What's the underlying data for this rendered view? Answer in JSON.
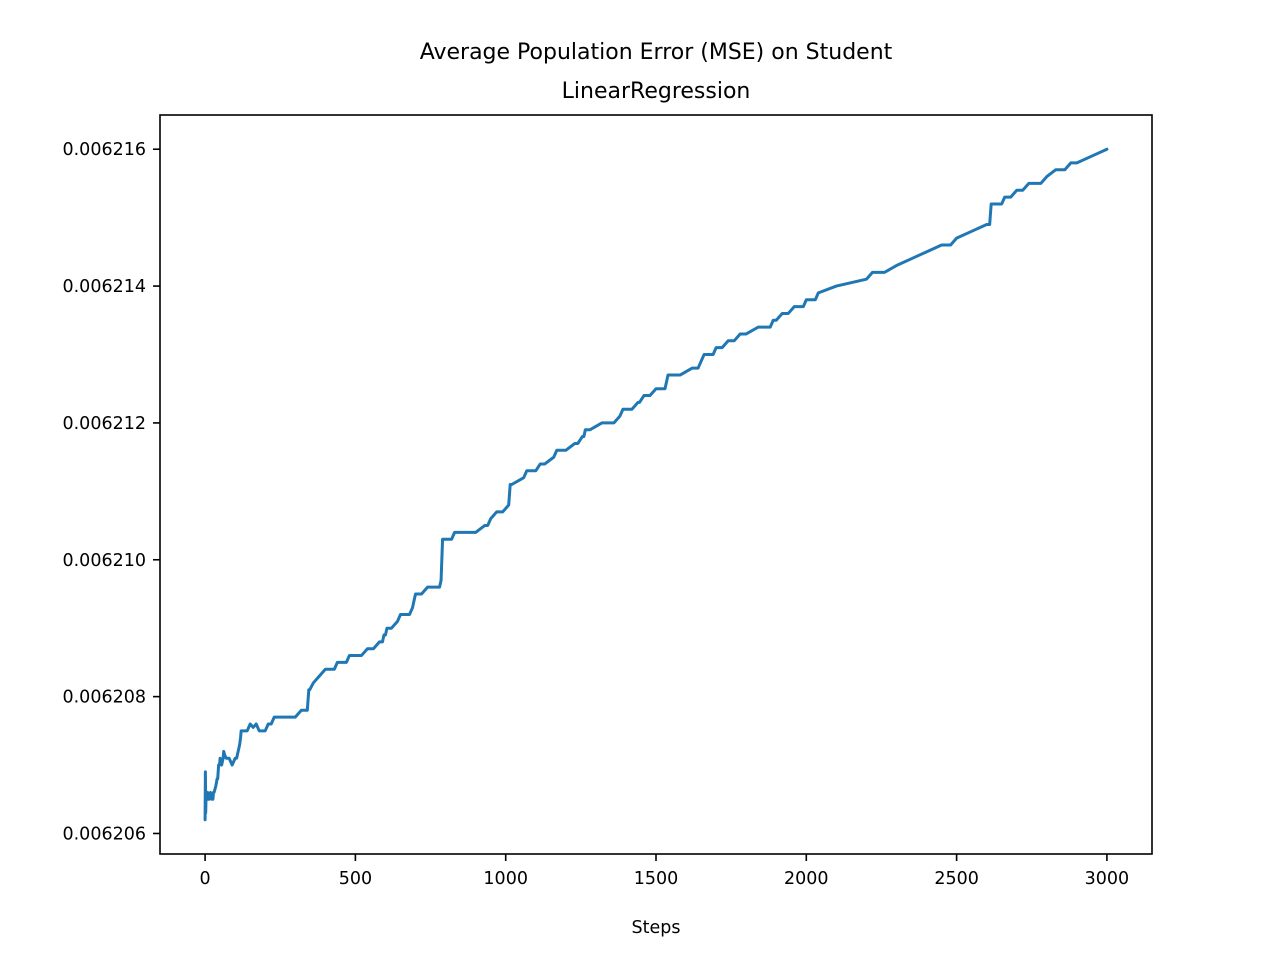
{
  "chart_data": {
    "type": "line",
    "title": "Average Population Error (MSE) on Student\nLinearRegression",
    "title_lines": [
      "Average Population Error (MSE) on Student",
      "LinearRegression"
    ],
    "xlabel": "Steps",
    "ylabel": "",
    "xlim": [
      -150,
      3150
    ],
    "ylim": [
      0.0062057,
      0.0062165
    ],
    "xticks": [
      0,
      500,
      1000,
      1500,
      2000,
      2500,
      3000
    ],
    "xtick_labels": [
      "0",
      "500",
      "1000",
      "1500",
      "2000",
      "2500",
      "3000"
    ],
    "yticks": [
      0.006206,
      0.006208,
      0.00621,
      0.006212,
      0.006214,
      0.006216
    ],
    "ytick_labels": [
      "0.006206",
      "0.006208",
      "0.006210",
      "0.006212",
      "0.006214",
      "0.006216"
    ],
    "grid": false,
    "series_color": "#1f77b4",
    "series": [
      {
        "x": [
          0,
          1,
          2,
          3,
          4,
          5,
          8,
          10,
          14,
          18,
          22,
          26,
          28,
          30,
          36,
          40,
          42,
          45,
          48,
          50,
          55,
          60,
          62,
          65,
          70,
          80,
          90,
          100,
          105,
          110,
          115,
          118,
          120,
          125,
          130,
          140,
          150,
          160,
          170,
          180,
          190,
          200,
          210,
          220,
          230,
          250,
          280,
          300,
          320,
          340,
          345,
          348,
          360,
          380,
          400,
          430,
          440,
          470,
          480,
          500,
          520,
          540,
          560,
          580,
          590,
          595,
          600,
          605,
          620,
          640,
          650,
          660,
          680,
          690,
          700,
          720,
          740,
          760,
          780,
          785,
          790,
          810,
          820,
          830,
          840,
          870,
          900,
          930,
          940,
          950,
          970,
          990,
          1010,
          1015,
          1020,
          1060,
          1070,
          1100,
          1115,
          1130,
          1160,
          1170,
          1200,
          1230,
          1240,
          1255,
          1260,
          1265,
          1280,
          1320,
          1360,
          1380,
          1390,
          1400,
          1420,
          1440,
          1445,
          1460,
          1480,
          1500,
          1530,
          1535,
          1540,
          1580,
          1620,
          1640,
          1650,
          1660,
          1680,
          1690,
          1700,
          1720,
          1740,
          1760,
          1780,
          1800,
          1840,
          1860,
          1880,
          1890,
          1900,
          1920,
          1940,
          1960,
          1990,
          2000,
          2030,
          2040,
          2100,
          2200,
          2220,
          2260,
          2300,
          2350,
          2400,
          2450,
          2480,
          2500,
          2550,
          2600,
          2610,
          2615,
          2650,
          2660,
          2680,
          2700,
          2720,
          2740,
          2760,
          2780,
          2800,
          2830,
          2860,
          2880,
          2890,
          2900,
          2950,
          3000
        ],
        "y": [
          0.0062062,
          0.0062069,
          0.0062063,
          0.0062065,
          0.0062066,
          0.0062065,
          0.0062066,
          0.0062065,
          0.0062065,
          0.0062066,
          0.0062065,
          0.0062065,
          0.0062066,
          0.0062066,
          0.0062067,
          0.0062068,
          0.0062068,
          0.006207,
          0.006207,
          0.0062071,
          0.006207,
          0.0062071,
          0.0062072,
          0.00620715,
          0.0062071,
          0.0062071,
          0.006207,
          0.0062071,
          0.0062071,
          0.0062072,
          0.0062073,
          0.0062074,
          0.0062075,
          0.0062075,
          0.0062075,
          0.0062075,
          0.0062076,
          0.00620755,
          0.0062076,
          0.0062075,
          0.0062075,
          0.0062075,
          0.0062076,
          0.0062076,
          0.0062077,
          0.0062077,
          0.0062077,
          0.0062077,
          0.0062078,
          0.0062078,
          0.0062081,
          0.0062081,
          0.0062082,
          0.0062083,
          0.0062084,
          0.0062084,
          0.0062085,
          0.0062085,
          0.0062086,
          0.0062086,
          0.0062086,
          0.0062087,
          0.0062087,
          0.0062088,
          0.0062088,
          0.0062089,
          0.0062089,
          0.006209,
          0.006209,
          0.0062091,
          0.0062092,
          0.0062092,
          0.0062092,
          0.0062093,
          0.0062095,
          0.0062095,
          0.0062096,
          0.0062096,
          0.0062096,
          0.0062097,
          0.0062103,
          0.0062103,
          0.0062103,
          0.0062104,
          0.0062104,
          0.0062104,
          0.0062104,
          0.0062105,
          0.0062105,
          0.0062106,
          0.0062107,
          0.0062107,
          0.0062108,
          0.0062111,
          0.0062111,
          0.0062112,
          0.0062113,
          0.0062113,
          0.0062114,
          0.0062114,
          0.0062115,
          0.0062116,
          0.0062116,
          0.0062117,
          0.0062117,
          0.0062118,
          0.0062118,
          0.0062119,
          0.0062119,
          0.006212,
          0.006212,
          0.0062121,
          0.0062122,
          0.0062122,
          0.0062122,
          0.0062123,
          0.0062123,
          0.0062124,
          0.0062124,
          0.0062125,
          0.0062125,
          0.0062126,
          0.0062127,
          0.0062127,
          0.0062128,
          0.0062128,
          0.0062129,
          0.006213,
          0.006213,
          0.006213,
          0.0062131,
          0.0062131,
          0.0062132,
          0.0062132,
          0.0062133,
          0.0062133,
          0.0062134,
          0.0062134,
          0.0062134,
          0.0062135,
          0.0062135,
          0.0062136,
          0.0062136,
          0.0062137,
          0.0062137,
          0.0062138,
          0.0062138,
          0.0062139,
          0.006214,
          0.0062141,
          0.0062142,
          0.0062142,
          0.0062143,
          0.0062144,
          0.0062145,
          0.0062146,
          0.0062146,
          0.0062147,
          0.0062148,
          0.0062149,
          0.0062149,
          0.0062152,
          0.0062152,
          0.0062153,
          0.0062153,
          0.0062154,
          0.0062154,
          0.0062155,
          0.0062155,
          0.0062155,
          0.0062156,
          0.0062157,
          0.0062157,
          0.0062158,
          0.0062158,
          0.0062158,
          0.0062159,
          0.006216
        ]
      }
    ]
  }
}
